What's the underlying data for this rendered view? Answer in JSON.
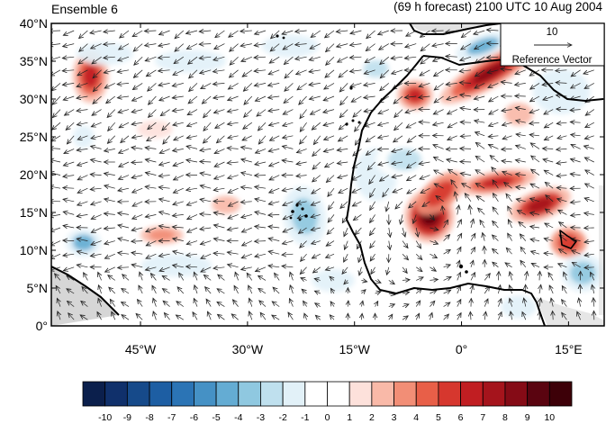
{
  "title_left": "Ensemble 6",
  "title_right": "(69 h forecast) 2100 UTC 10 Aug 2004",
  "reference_vector": {
    "magnitude": "10",
    "label": "Reference Vector"
  },
  "map": {
    "lon_range": [
      -57.5,
      20.0
    ],
    "lat_range": [
      0,
      40
    ],
    "lat_ticks": [
      {
        "value": 0,
        "label": "0°"
      },
      {
        "value": 5,
        "label": "5°N"
      },
      {
        "value": 10,
        "label": "10°N"
      },
      {
        "value": 15,
        "label": "15°N"
      },
      {
        "value": 20,
        "label": "20°N"
      },
      {
        "value": 25,
        "label": "25°N"
      },
      {
        "value": 30,
        "label": "30°N"
      },
      {
        "value": 35,
        "label": "35°N"
      },
      {
        "value": 40,
        "label": "40°N"
      }
    ],
    "lon_ticks": [
      {
        "value": -45,
        "label": "45°W"
      },
      {
        "value": -30,
        "label": "30°W"
      },
      {
        "value": -15,
        "label": "15°W"
      },
      {
        "value": 0,
        "label": "0°"
      },
      {
        "value": 15,
        "label": "15°E"
      }
    ],
    "anomaly_blobs": [
      {
        "lon": 4.0,
        "lat": 33.5,
        "rx": 8.0,
        "ry": 2.0,
        "rot": -30,
        "value": 8
      },
      {
        "lon": -6.5,
        "lat": 30.5,
        "rx": 2.5,
        "ry": 2.0,
        "rot": 0,
        "value": 6
      },
      {
        "lon": -4.5,
        "lat": 14.5,
        "rx": 3.5,
        "ry": 3.5,
        "rot": 0,
        "value": 9
      },
      {
        "lon": -3.0,
        "lat": 17.5,
        "rx": 4.0,
        "ry": 2.0,
        "rot": -40,
        "value": 5
      },
      {
        "lon": 5.0,
        "lat": 19.0,
        "rx": 5.5,
        "ry": 1.5,
        "rot": -10,
        "value": 6
      },
      {
        "lon": 11.0,
        "lat": 16.0,
        "rx": 4.5,
        "ry": 2.0,
        "rot": -20,
        "value": 7
      },
      {
        "lon": 15.0,
        "lat": 11.0,
        "rx": 2.5,
        "ry": 2.0,
        "rot": 0,
        "value": 5
      },
      {
        "lon": -52.0,
        "lat": 33.0,
        "rx": 2.5,
        "ry": 3.5,
        "rot": 0,
        "value": 6
      },
      {
        "lon": -42.0,
        "lat": 12.0,
        "rx": 3.0,
        "ry": 1.2,
        "rot": 0,
        "value": 3
      },
      {
        "lon": -33.0,
        "lat": 16.0,
        "rx": 2.0,
        "ry": 1.2,
        "rot": 0,
        "value": 2
      },
      {
        "lon": -43.0,
        "lat": 26.0,
        "rx": 2.5,
        "ry": 1.2,
        "rot": 0,
        "value": 1
      },
      {
        "lon": 8.0,
        "lat": 28.0,
        "rx": 2.0,
        "ry": 1.5,
        "rot": 0,
        "value": 2
      },
      {
        "lon": -22.0,
        "lat": 14.5,
        "rx": 3.0,
        "ry": 4.0,
        "rot": -10,
        "value": -4
      },
      {
        "lon": -53.0,
        "lat": 11.0,
        "rx": 2.5,
        "ry": 1.8,
        "rot": 0,
        "value": -5
      },
      {
        "lon": -50.0,
        "lat": 36.0,
        "rx": 4.0,
        "ry": 1.5,
        "rot": 0,
        "value": -2
      },
      {
        "lon": -38.0,
        "lat": 35.0,
        "rx": 5.0,
        "ry": 1.5,
        "rot": 0,
        "value": -2
      },
      {
        "lon": -24.0,
        "lat": 37.0,
        "rx": 4.0,
        "ry": 1.5,
        "rot": 0,
        "value": -2
      },
      {
        "lon": -12.0,
        "lat": 34.0,
        "rx": 3.0,
        "ry": 2.0,
        "rot": 0,
        "value": -3
      },
      {
        "lon": -12.0,
        "lat": 20.0,
        "rx": 3.0,
        "ry": 3.5,
        "rot": 0,
        "value": -2
      },
      {
        "lon": -8.0,
        "lat": 22.0,
        "rx": 4.0,
        "ry": 2.5,
        "rot": 0,
        "value": -3
      },
      {
        "lon": 14.0,
        "lat": 31.0,
        "rx": 4.0,
        "ry": 3.0,
        "rot": 0,
        "value": -2
      },
      {
        "lon": 3.0,
        "lat": 37.0,
        "rx": 4.0,
        "ry": 1.5,
        "rot": -20,
        "value": -5
      },
      {
        "lon": 17.0,
        "lat": 7.0,
        "rx": 3.0,
        "ry": 2.5,
        "rot": 0,
        "value": -4
      },
      {
        "lon": 8.0,
        "lat": 2.5,
        "rx": 2.5,
        "ry": 1.5,
        "rot": 0,
        "value": -2
      },
      {
        "lon": -40.0,
        "lat": 8.0,
        "rx": 5.0,
        "ry": 1.5,
        "rot": 0,
        "value": -2
      },
      {
        "lon": -30.0,
        "lat": 4.0,
        "rx": 4.0,
        "ry": 1.5,
        "rot": 0,
        "value": -1
      },
      {
        "lon": -53.0,
        "lat": 25.0,
        "rx": 1.5,
        "ry": 1.5,
        "rot": 0,
        "value": -2
      },
      {
        "lon": -18.0,
        "lat": 6.0,
        "rx": 3.0,
        "ry": 1.5,
        "rot": 0,
        "value": -2
      }
    ]
  },
  "colorbar": {
    "labels": [
      "-10",
      "-9",
      "-8",
      "-7",
      "-6",
      "-5",
      "-4",
      "-3",
      "-2",
      "-1",
      "0",
      "1",
      "2",
      "3",
      "4",
      "5",
      "6",
      "7",
      "8",
      "9",
      "10"
    ],
    "colors": [
      "#0b1f4c",
      "#10306b",
      "#164a8a",
      "#1d5ea3",
      "#2b74b5",
      "#4591c5",
      "#64acd3",
      "#8fc8e0",
      "#bfe0ee",
      "#e2f1f8",
      "#ffffff",
      "#ffffff",
      "#fde1db",
      "#f9b9a8",
      "#f28e76",
      "#e85f48",
      "#d6372e",
      "#c11e22",
      "#a5141c",
      "#850b16",
      "#5a0410",
      "#3d0008"
    ]
  }
}
